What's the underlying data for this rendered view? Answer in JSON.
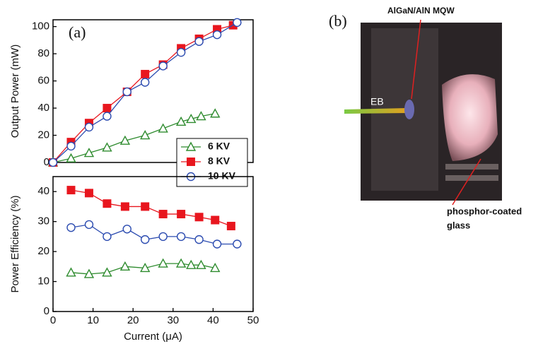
{
  "chart_data": [
    {
      "type": "line",
      "panel_label": "(a)",
      "y_label": "Output Power (mW)",
      "xlim": [
        0,
        50
      ],
      "ylim": [
        0,
        105
      ],
      "yticks": [
        0,
        20,
        40,
        60,
        80,
        100
      ],
      "legend": "lower right",
      "series": [
        {
          "name": "6 KV",
          "color": "#2e8b2e",
          "marker": "triangle-open",
          "x": [
            0,
            4.5,
            9,
            13.5,
            18,
            23,
            27.5,
            32,
            34.5,
            37,
            40.5
          ],
          "values": [
            0,
            3,
            7,
            11,
            16,
            20,
            25,
            30,
            32,
            34,
            36
          ]
        },
        {
          "name": "8 KV",
          "color": "#e8161e",
          "marker": "square-filled",
          "x": [
            0,
            4.5,
            9,
            13.5,
            18.5,
            23,
            27.5,
            32,
            36.5,
            41,
            45
          ],
          "values": [
            0,
            15,
            29,
            40,
            52,
            65,
            72,
            84,
            91,
            98,
            101
          ]
        },
        {
          "name": "10 KV",
          "color": "#2b4bb0",
          "marker": "circle-open",
          "x": [
            0,
            4.5,
            9,
            13.5,
            18.5,
            23,
            27.5,
            32,
            36.5,
            41,
            46
          ],
          "values": [
            0,
            12,
            26,
            34,
            52,
            59,
            71,
            81,
            89,
            94,
            103
          ]
        }
      ]
    },
    {
      "type": "line",
      "x_label": "Current (μA)",
      "y_label": "Power Efficiency (%)",
      "xlim": [
        0,
        50
      ],
      "xticks": [
        0,
        10,
        20,
        30,
        40,
        50
      ],
      "ylim": [
        0,
        45
      ],
      "yticks": [
        0,
        10,
        20,
        30,
        40
      ],
      "series": [
        {
          "color": "#2e8b2e",
          "marker": "triangle-open",
          "x": [
            4.5,
            9,
            13.5,
            18,
            23,
            27.5,
            32,
            34.5,
            37,
            40.5
          ],
          "values": [
            13,
            12.5,
            13,
            15,
            14.5,
            16,
            16,
            15.5,
            15.5,
            14.5
          ]
        },
        {
          "color": "#e8161e",
          "marker": "square-filled",
          "x": [
            4.5,
            9,
            13.5,
            18,
            23,
            27.5,
            32,
            36.5,
            40.5,
            44.5
          ],
          "values": [
            40.5,
            39.5,
            36,
            35,
            35,
            32.5,
            32.5,
            31.5,
            30.5,
            28.5
          ]
        },
        {
          "color": "#2b4bb0",
          "marker": "circle-open",
          "x": [
            4.5,
            9,
            13.5,
            18.5,
            23,
            27.5,
            32,
            36.5,
            41,
            46
          ],
          "values": [
            28,
            29,
            25,
            27.5,
            24,
            25,
            25,
            24,
            22.5,
            22.5
          ]
        }
      ]
    }
  ],
  "photo": {
    "panel_label": "(b)",
    "structure_label": "AlGaN/AlN MQW",
    "beam_label": "EB",
    "target_label_lines": [
      "phosphor-coated",
      "glass"
    ]
  }
}
